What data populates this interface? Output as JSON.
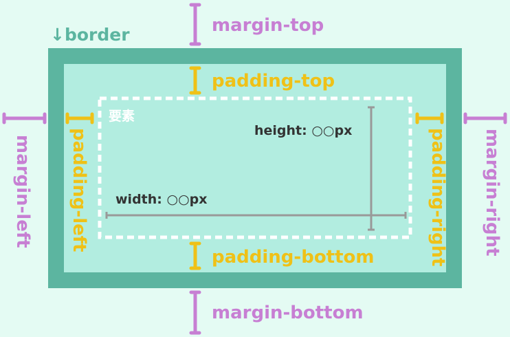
{
  "labels": {
    "border": "↓border",
    "margin_top": "margin-top",
    "margin_bottom": "margin-bottom",
    "margin_left": "margin-left",
    "margin_right": "margin-right",
    "padding_top": "padding-top",
    "padding_bottom": "padding-bottom",
    "padding_left": "padding-left",
    "padding_right": "padding-right",
    "element": "要素",
    "height": "height: ○○px",
    "width": "width: ○○px"
  },
  "colors": {
    "background": "#e4fbf3",
    "border": "#5cb5a0",
    "padding_area": "#b2ede0",
    "margin": "#c77fd3",
    "padding": "#efc117",
    "content_outline": "#ffffff",
    "dimension_line": "#999999"
  }
}
